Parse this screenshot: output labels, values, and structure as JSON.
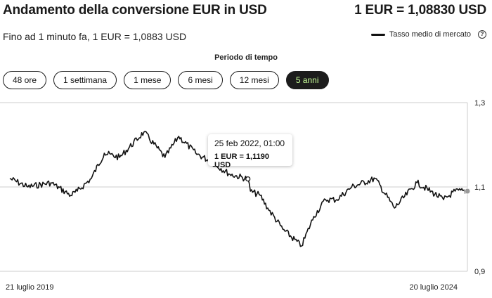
{
  "header": {
    "title": "Andamento della conversione EUR in USD",
    "rate": "1 EUR = 1,08830 USD",
    "subtitle": "Fino ad 1 minuto fa, 1 EUR = 1,0883 USD"
  },
  "legend": {
    "label": "Tasso medio di mercato",
    "help_icon": "question-circle-icon"
  },
  "period": {
    "label": "Periodo di tempo",
    "options": [
      "48 ore",
      "1 settimana",
      "1 mese",
      "6 mesi",
      "12 mesi",
      "5 anni"
    ],
    "selected": "5 anni"
  },
  "tooltip": {
    "date": "25 feb 2022, 01:00",
    "value": "1 EUR = 1,1190 USD"
  },
  "colors": {
    "line": "#111111",
    "active_tab_bg": "#1c1c1c",
    "active_tab_text": "#c9ff9a",
    "grid": "#cccccc"
  },
  "chart_data": {
    "type": "line",
    "series": [
      {
        "x": [
          "2019-07-21",
          "2019-10-01",
          "2020-01-01",
          "2020-03-20",
          "2020-04-15",
          "2020-06-10",
          "2020-08-01",
          "2020-10-01",
          "2021-01-06",
          "2021-03-31",
          "2021-05-25",
          "2021-08-01",
          "2021-10-01",
          "2021-12-15",
          "2022-02-25",
          "2022-03-07",
          "2022-04-15",
          "2022-05-15",
          "2022-07-14",
          "2022-09-27",
          "2022-11-15",
          "2023-01-01",
          "2023-02-15",
          "2023-04-15",
          "2023-07-18",
          "2023-10-03",
          "2024-01-01",
          "2024-04-16",
          "2024-06-01",
          "2024-07-20"
        ],
        "y": [
          1.12,
          1.1,
          1.11,
          1.08,
          1.09,
          1.12,
          1.18,
          1.17,
          1.23,
          1.17,
          1.22,
          1.18,
          1.16,
          1.13,
          1.119,
          1.09,
          1.08,
          1.05,
          1.0,
          0.96,
          1.03,
          1.07,
          1.07,
          1.1,
          1.12,
          1.05,
          1.11,
          1.07,
          1.09,
          1.09
        ]
      }
    ],
    "yticks": [
      "0,9",
      "1,1",
      "1,3"
    ],
    "xticks": [
      "21 luglio 2019",
      "20 luglio 2024"
    ],
    "ylim": [
      0.9,
      1.3
    ],
    "xlim": [
      "2019-07-21",
      "2024-07-20"
    ],
    "highlight": {
      "x": "2022-02-25",
      "y": 1.119
    },
    "grid": "horizontal"
  }
}
